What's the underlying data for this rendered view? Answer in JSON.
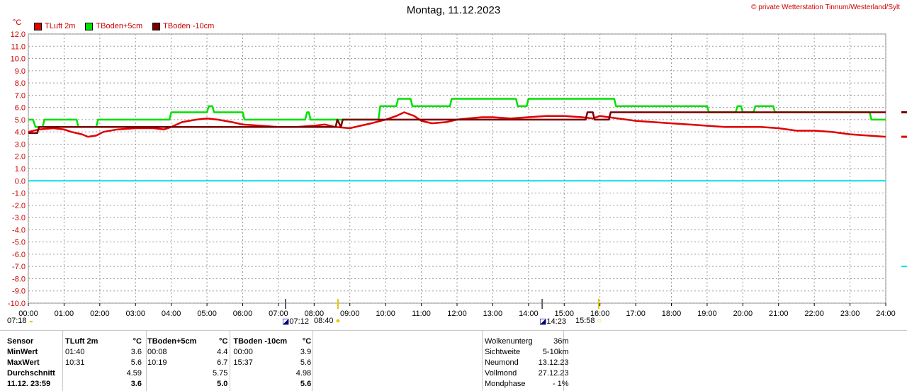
{
  "title": "Montag, 11.12.2023",
  "copyright": "© private Wetterstation Tinnum/Westerland/Sylt",
  "unit": "°C",
  "sun_moon": {
    "sunrise_icon_time": "07:18",
    "civil_dawn": "07:12",
    "sunrise": "08:40",
    "sunset_civil": "14:23",
    "sunset": "15:58"
  },
  "stats": {
    "headers": [
      "Sensor",
      "TLuft 2m",
      "°C",
      "TBoden+5cm",
      "°C",
      "TBoden -10cm",
      "°C"
    ],
    "rows": [
      {
        "label": "MinWert",
        "c1": "01:40",
        "v1": "3.6",
        "c2": "00:08",
        "v2": "4.4",
        "c3": "00:00",
        "v3": "3.9"
      },
      {
        "label": "MaxWert",
        "c1": "10:31",
        "v1": "5.6",
        "c2": "10:19",
        "v2": "6.7",
        "c3": "15:37",
        "v3": "5.6"
      },
      {
        "label": "Durchschnitt",
        "c1": "",
        "v1": "4.59",
        "c2": "",
        "v2": "5.75",
        "c3": "",
        "v3": "4.98"
      },
      {
        "label": "11.12. 23:59",
        "c1": "",
        "v1": "3.6",
        "c2": "",
        "v2": "5.0",
        "c3": "",
        "v3": "5.6"
      }
    ]
  },
  "weather": [
    {
      "label": "Wolkenunterg",
      "value": "36m"
    },
    {
      "label": "Sichtweite",
      "value": "5-10km"
    },
    {
      "label": "Neumond",
      "value": "13.12.23"
    },
    {
      "label": "Vollmond",
      "value": "27.12.23"
    },
    {
      "label": "Mondphase",
      "value": "- 1%"
    }
  ],
  "chart_data": {
    "type": "line",
    "title": "Montag, 11.12.2023",
    "ylabel": "°C",
    "ylim": [
      -10,
      12
    ],
    "xlim": [
      0,
      24
    ],
    "grid": true,
    "legend_position": "top-left",
    "x_ticks": [
      "00:00",
      "01:00",
      "02:00",
      "03:00",
      "04:00",
      "05:00",
      "06:00",
      "07:00",
      "08:00",
      "09:00",
      "10:00",
      "11:00",
      "12:00",
      "13:00",
      "14:00",
      "15:00",
      "16:00",
      "17:00",
      "18:00",
      "19:00",
      "20:00",
      "21:00",
      "22:00",
      "23:00",
      "24:00"
    ],
    "y_ticks": [
      "12.0",
      "11.0",
      "10.0",
      "9.0",
      "8.0",
      "7.0",
      "6.0",
      "5.0",
      "4.0",
      "3.0",
      "2.0",
      "1.0",
      "0.0",
      "-1.0",
      "-2.0",
      "-3.0",
      "-4.0",
      "-5.0",
      "-6.0",
      "-7.0",
      "-8.0",
      "-9.0",
      "-10.0"
    ],
    "zero_line_color": "#00e0e0",
    "series": [
      {
        "name": "TLuft 2m",
        "color": "#e00000",
        "x": [
          0,
          0.3,
          0.7,
          1.0,
          1.2,
          1.5,
          1.67,
          1.9,
          2.1,
          2.5,
          3.0,
          3.5,
          3.8,
          4.0,
          4.3,
          4.7,
          5.0,
          5.3,
          5.7,
          6.0,
          6.5,
          7.0,
          7.5,
          8.0,
          8.3,
          8.6,
          9.0,
          9.3,
          9.6,
          10.0,
          10.3,
          10.52,
          10.8,
          11.0,
          11.3,
          11.7,
          12.0,
          12.3,
          12.7,
          13.0,
          13.5,
          14.0,
          14.5,
          15.0,
          15.5,
          15.8,
          16.0,
          16.5,
          17.0,
          17.5,
          18.0,
          18.5,
          19.0,
          19.5,
          20.0,
          20.5,
          21.0,
          21.5,
          22.0,
          22.5,
          23.0,
          23.5,
          24.0
        ],
        "values": [
          4.0,
          4.2,
          4.3,
          4.2,
          4.0,
          3.8,
          3.6,
          3.7,
          4.0,
          4.2,
          4.3,
          4.3,
          4.2,
          4.4,
          4.8,
          5.0,
          5.1,
          5.0,
          4.8,
          4.6,
          4.5,
          4.4,
          4.4,
          4.5,
          4.6,
          4.4,
          4.3,
          4.5,
          4.7,
          5.0,
          5.3,
          5.6,
          5.3,
          4.9,
          4.7,
          4.8,
          5.0,
          5.1,
          5.2,
          5.2,
          5.1,
          5.2,
          5.3,
          5.3,
          5.2,
          5.1,
          5.3,
          5.1,
          4.9,
          4.8,
          4.7,
          4.6,
          4.5,
          4.4,
          4.4,
          4.4,
          4.3,
          4.1,
          4.1,
          4.0,
          3.8,
          3.7,
          3.6
        ]
      },
      {
        "name": "TBoden+5cm",
        "color": "#00e000",
        "x": [
          0,
          0.13,
          0.2,
          0.4,
          0.45,
          1.35,
          1.4,
          1.9,
          1.95,
          3.95,
          4.0,
          5.0,
          5.05,
          5.15,
          5.2,
          6.0,
          6.05,
          7.75,
          7.8,
          7.85,
          7.9,
          9.8,
          9.85,
          10.3,
          10.35,
          10.7,
          10.75,
          11.8,
          11.85,
          13.65,
          13.7,
          13.95,
          14.0,
          16.4,
          16.45,
          19.0,
          19.05,
          19.8,
          19.85,
          19.95,
          20.0,
          20.3,
          20.35,
          20.85,
          20.9,
          23.55,
          23.6,
          24.0
        ],
        "values": [
          5.0,
          5.0,
          4.4,
          4.4,
          5.0,
          5.0,
          4.4,
          4.4,
          5.0,
          5.0,
          5.6,
          5.6,
          6.1,
          6.1,
          5.6,
          5.6,
          5.0,
          5.0,
          5.6,
          5.6,
          5.0,
          5.0,
          6.1,
          6.1,
          6.7,
          6.7,
          6.1,
          6.1,
          6.7,
          6.7,
          6.1,
          6.1,
          6.7,
          6.7,
          6.1,
          6.1,
          5.6,
          5.6,
          6.1,
          6.1,
          5.6,
          5.6,
          6.1,
          6.1,
          5.6,
          5.6,
          5.0,
          5.0
        ]
      },
      {
        "name": "TBoden -10cm",
        "color": "#7a0000",
        "x": [
          0,
          0.25,
          0.3,
          1.0,
          8.6,
          8.65,
          8.75,
          8.8,
          15.6,
          15.65,
          15.8,
          15.85,
          16.25,
          16.3,
          24.0
        ],
        "values": [
          3.9,
          3.9,
          4.4,
          4.4,
          4.4,
          5.0,
          4.4,
          5.0,
          5.0,
          5.6,
          5.6,
          5.0,
          5.0,
          5.6,
          5.6
        ]
      }
    ]
  }
}
